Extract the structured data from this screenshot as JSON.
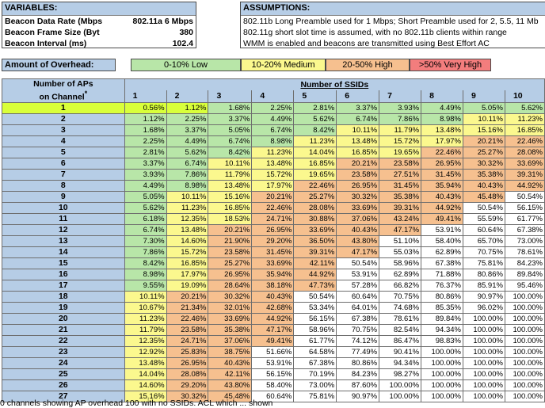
{
  "variables": {
    "header": "VARIABLES:",
    "rows": [
      {
        "label": "Beacon Data Rate (Mbps",
        "value": "802.11a 6 Mbps"
      },
      {
        "label": "Beacon Frame Size (Byt",
        "value": "380"
      },
      {
        "label": "Beacon Interval (ms)",
        "value": "102.4"
      }
    ]
  },
  "assumptions": {
    "header": "ASSUMPTIONS:",
    "lines": [
      "802.11b Long Preamble used for 1 Mbps; Short Preamble used for 2, 5.5, 11 Mb",
      "802.11g short slot time is assumed, with no 802.11b clients within range",
      "WMM is enabled and beacons are transmitted using Best Effort AC"
    ]
  },
  "overhead_legend": {
    "label": "Amount of Overhead:",
    "low": "0-10% Low",
    "medium": "10-20% Medium",
    "high": "20-50% High",
    "very_high": ">50% Very High"
  },
  "table": {
    "row_header_line1": "Number of APs",
    "row_header_line2": "on Channel",
    "col_group_header": "Number of SSIDs",
    "columns": [
      "1",
      "2",
      "3",
      "4",
      "5",
      "6",
      "7",
      "8",
      "9",
      "10"
    ],
    "rows": [
      {
        "ap": "1",
        "v": [
          "0.56%",
          "1.12%",
          "1.68%",
          "2.25%",
          "2.81%",
          "3.37%",
          "3.93%",
          "4.49%",
          "5.05%",
          "5.62%"
        ]
      },
      {
        "ap": "2",
        "v": [
          "1.12%",
          "2.25%",
          "3.37%",
          "4.49%",
          "5.62%",
          "6.74%",
          "7.86%",
          "8.98%",
          "10.11%",
          "11.23%"
        ]
      },
      {
        "ap": "3",
        "v": [
          "1.68%",
          "3.37%",
          "5.05%",
          "6.74%",
          "8.42%",
          "10.11%",
          "11.79%",
          "13.48%",
          "15.16%",
          "16.85%"
        ]
      },
      {
        "ap": "4",
        "v": [
          "2.25%",
          "4.49%",
          "6.74%",
          "8.98%",
          "11.23%",
          "13.48%",
          "15.72%",
          "17.97%",
          "20.21%",
          "22.46%"
        ]
      },
      {
        "ap": "5",
        "v": [
          "2.81%",
          "5.62%",
          "8.42%",
          "11.23%",
          "14.04%",
          "16.85%",
          "19.65%",
          "22.46%",
          "25.27%",
          "28.08%"
        ]
      },
      {
        "ap": "6",
        "v": [
          "3.37%",
          "6.74%",
          "10.11%",
          "13.48%",
          "16.85%",
          "20.21%",
          "23.58%",
          "26.95%",
          "30.32%",
          "33.69%"
        ]
      },
      {
        "ap": "7",
        "v": [
          "3.93%",
          "7.86%",
          "11.79%",
          "15.72%",
          "19.65%",
          "23.58%",
          "27.51%",
          "31.45%",
          "35.38%",
          "39.31%"
        ]
      },
      {
        "ap": "8",
        "v": [
          "4.49%",
          "8.98%",
          "13.48%",
          "17.97%",
          "22.46%",
          "26.95%",
          "31.45%",
          "35.94%",
          "40.43%",
          "44.92%"
        ]
      },
      {
        "ap": "9",
        "v": [
          "5.05%",
          "10.11%",
          "15.16%",
          "20.21%",
          "25.27%",
          "30.32%",
          "35.38%",
          "40.43%",
          "45.48%",
          "50.54%"
        ]
      },
      {
        "ap": "10",
        "v": [
          "5.62%",
          "11.23%",
          "16.85%",
          "22.46%",
          "28.08%",
          "33.69%",
          "39.31%",
          "44.92%",
          "50.54%",
          "56.15%"
        ]
      },
      {
        "ap": "11",
        "v": [
          "6.18%",
          "12.35%",
          "18.53%",
          "24.71%",
          "30.88%",
          "37.06%",
          "43.24%",
          "49.41%",
          "55.59%",
          "61.77%"
        ]
      },
      {
        "ap": "12",
        "v": [
          "6.74%",
          "13.48%",
          "20.21%",
          "26.95%",
          "33.69%",
          "40.43%",
          "47.17%",
          "53.91%",
          "60.64%",
          "67.38%"
        ]
      },
      {
        "ap": "13",
        "v": [
          "7.30%",
          "14.60%",
          "21.90%",
          "29.20%",
          "36.50%",
          "43.80%",
          "51.10%",
          "58.40%",
          "65.70%",
          "73.00%"
        ]
      },
      {
        "ap": "14",
        "v": [
          "7.86%",
          "15.72%",
          "23.58%",
          "31.45%",
          "39.31%",
          "47.17%",
          "55.03%",
          "62.89%",
          "70.75%",
          "78.61%"
        ]
      },
      {
        "ap": "15",
        "v": [
          "8.42%",
          "16.85%",
          "25.27%",
          "33.69%",
          "42.11%",
          "50.54%",
          "58.96%",
          "67.38%",
          "75.81%",
          "84.23%"
        ]
      },
      {
        "ap": "16",
        "v": [
          "8.98%",
          "17.97%",
          "26.95%",
          "35.94%",
          "44.92%",
          "53.91%",
          "62.89%",
          "71.88%",
          "80.86%",
          "89.84%"
        ]
      },
      {
        "ap": "17",
        "v": [
          "9.55%",
          "19.09%",
          "28.64%",
          "38.18%",
          "47.73%",
          "57.28%",
          "66.82%",
          "76.37%",
          "85.91%",
          "95.46%"
        ]
      },
      {
        "ap": "18",
        "v": [
          "10.11%",
          "20.21%",
          "30.32%",
          "40.43%",
          "50.54%",
          "60.64%",
          "70.75%",
          "80.86%",
          "90.97%",
          "100.00%"
        ]
      },
      {
        "ap": "19",
        "v": [
          "10.67%",
          "21.34%",
          "32.01%",
          "42.68%",
          "53.34%",
          "64.01%",
          "74.68%",
          "85.35%",
          "96.02%",
          "100.00%"
        ]
      },
      {
        "ap": "20",
        "v": [
          "11.23%",
          "22.46%",
          "33.69%",
          "44.92%",
          "56.15%",
          "67.38%",
          "78.61%",
          "89.84%",
          "100.00%",
          "100.00%"
        ]
      },
      {
        "ap": "21",
        "v": [
          "11.79%",
          "23.58%",
          "35.38%",
          "47.17%",
          "58.96%",
          "70.75%",
          "82.54%",
          "94.34%",
          "100.00%",
          "100.00%"
        ]
      },
      {
        "ap": "22",
        "v": [
          "12.35%",
          "24.71%",
          "37.06%",
          "49.41%",
          "61.77%",
          "74.12%",
          "86.47%",
          "98.83%",
          "100.00%",
          "100.00%"
        ]
      },
      {
        "ap": "23",
        "v": [
          "12.92%",
          "25.83%",
          "38.75%",
          "51.66%",
          "64.58%",
          "77.49%",
          "90.41%",
          "100.00%",
          "100.00%",
          "100.00%"
        ]
      },
      {
        "ap": "24",
        "v": [
          "13.48%",
          "26.95%",
          "40.43%",
          "53.91%",
          "67.38%",
          "80.86%",
          "94.34%",
          "100.00%",
          "100.00%",
          "100.00%"
        ]
      },
      {
        "ap": "25",
        "v": [
          "14.04%",
          "28.08%",
          "42.11%",
          "56.15%",
          "70.19%",
          "84.23%",
          "98.27%",
          "100.00%",
          "100.00%",
          "100.00%"
        ]
      },
      {
        "ap": "26",
        "v": [
          "14.60%",
          "29.20%",
          "43.80%",
          "58.40%",
          "73.00%",
          "87.60%",
          "100.00%",
          "100.00%",
          "100.00%",
          "100.00%"
        ]
      },
      {
        "ap": "27",
        "v": [
          "15.16%",
          "30.32%",
          "45.48%",
          "60.64%",
          "75.81%",
          "90.97%",
          "100.00%",
          "100.00%",
          "100.00%",
          "100.00%"
        ]
      }
    ]
  },
  "colors": {
    "low": "#b8e6a8",
    "medium": "#fbf88e",
    "high": "#f6c08f",
    "very_high": "#f37d7d",
    "header": "#b6cde6",
    "highlight": "#d9ff3a"
  },
  "footer": "0 channels showing AP overhead 100 with no SSIDs. ACL which ... shown"
}
